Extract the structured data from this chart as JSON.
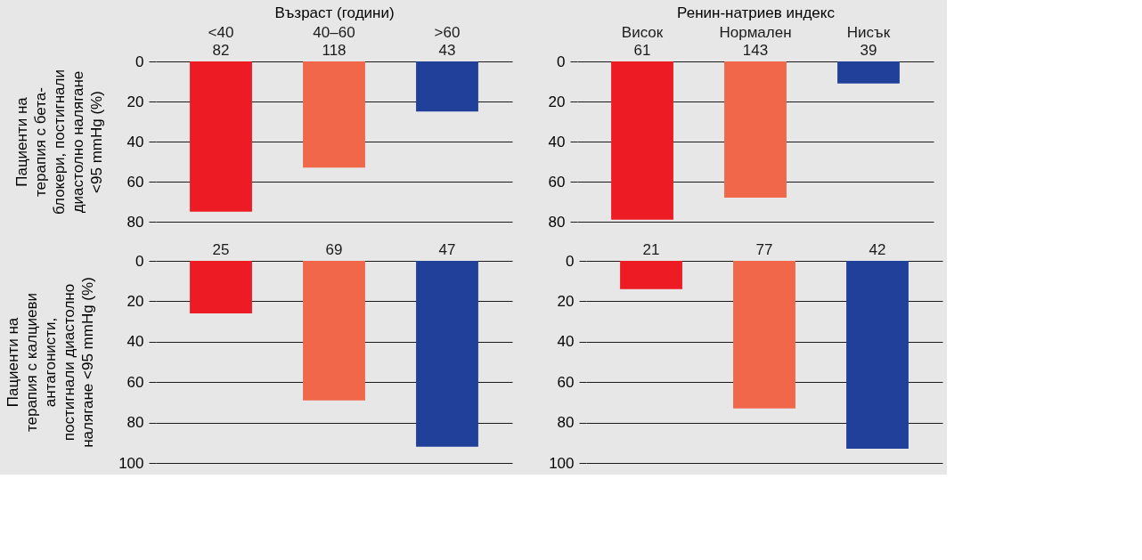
{
  "chart_data": [
    {
      "type": "bar",
      "xlabel": "Възраст (години)",
      "ylabel": "Пациенти на\nтерапия с бета-\nблокери, постигнали\nдиастолно налягане\n<95 mmHg (%)",
      "categories": [
        "<40\n82",
        "40–60\n118",
        ">60\n43"
      ],
      "values": [
        75,
        53,
        25
      ],
      "colors": [
        "#ed1c24",
        "#f1674a",
        "#21409a"
      ],
      "ylim": [
        80,
        0
      ],
      "yticks": [
        0,
        20,
        40,
        60,
        80
      ],
      "grid": "y"
    },
    {
      "type": "bar",
      "xlabel": "Ренин-натриев индекс",
      "categories": [
        "Висок\n61",
        "Нормален\n143",
        "Нисък\n39"
      ],
      "values": [
        79,
        68,
        11
      ],
      "colors": [
        "#ed1c24",
        "#f1674a",
        "#21409a"
      ],
      "ylim": [
        80,
        0
      ],
      "yticks": [
        0,
        20,
        40,
        60,
        80
      ],
      "grid": "y"
    },
    {
      "type": "bar",
      "ylabel": "Пациенти на\nтерапия с калциеви\nантагонисти,\nпостигнали диастолно\nналягане <95 mmHg (%)",
      "categories": [
        "25",
        "69",
        "47"
      ],
      "values": [
        26,
        69,
        92
      ],
      "colors": [
        "#ed1c24",
        "#f1674a",
        "#21409a"
      ],
      "ylim": [
        100,
        0
      ],
      "yticks": [
        0,
        20,
        40,
        60,
        80,
        100
      ],
      "grid": "y"
    },
    {
      "type": "bar",
      "categories": [
        "21",
        "77",
        "42"
      ],
      "values": [
        14,
        73,
        93
      ],
      "colors": [
        "#ed1c24",
        "#f1674a",
        "#21409a"
      ],
      "ylim": [
        100,
        0
      ],
      "yticks": [
        0,
        20,
        40,
        60,
        80,
        100
      ],
      "grid": "y"
    }
  ]
}
